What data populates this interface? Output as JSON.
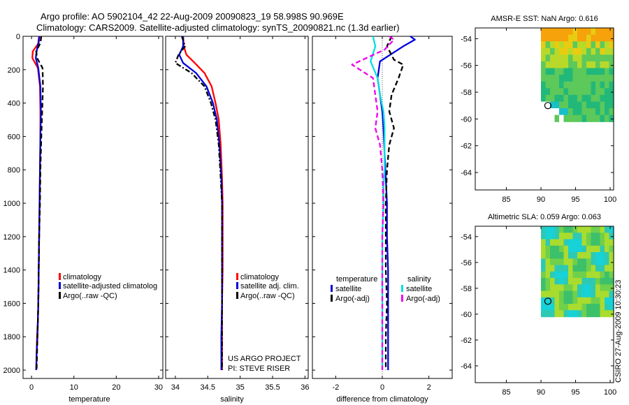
{
  "header": {
    "line1": "Argo profile: AO 5902104_42 22-Aug-2009 20090823_19 58.998S 90.969E",
    "line2": "Climatology: CARS2009. Satellite-adjusted climatology: synTS_20090821.nc (1.3d earlier)"
  },
  "footer_vertical": "CSIRO 27-Aug-2009 10:30:23",
  "project_note": {
    "line1": "US ARGO PROJECT",
    "line2": "PI: STEVE RISER"
  },
  "colors": {
    "climatology": "#ff0000",
    "satellite": "#0000dd",
    "argo": "#000000",
    "satellite_sal": "#00e0e0",
    "argo_sal": "#ee00ee"
  },
  "chart_data": [
    {
      "type": "line",
      "id": "temperature",
      "xlabel": "temperature",
      "xlim": [
        -2,
        31
      ],
      "xticks": [
        "0",
        "10",
        "20",
        "30"
      ],
      "ylim": [
        2050,
        0
      ],
      "yticks": [
        "0",
        "200",
        "400",
        "600",
        "800",
        "1000",
        "1200",
        "1400",
        "1600",
        "1800",
        "2000"
      ],
      "legend": [
        "climatology",
        "satellite-adjusted climatolog",
        "Argo(..raw -QC)"
      ],
      "series": [
        {
          "name": "climatology",
          "style": "solid",
          "color": "#ff0000",
          "x": [
            1.9,
            1.7,
            0.3,
            0.2,
            1.5,
            2.0,
            2.1,
            2.1,
            2.0,
            1.9,
            1.8,
            1.7,
            1.6,
            1.5,
            1.3,
            1.2,
            1.1
          ],
          "y": [
            0,
            40,
            90,
            130,
            190,
            300,
            450,
            600,
            800,
            1000,
            1200,
            1400,
            1600,
            1700,
            1800,
            1900,
            2000
          ]
        },
        {
          "name": "satellite-adjusted climatolog",
          "style": "solid",
          "color": "#0000dd",
          "x": [
            1.8,
            1.6,
            1.2,
            1.0,
            1.6,
            2.1,
            2.2,
            2.1,
            2.0,
            1.9,
            1.8,
            1.7,
            1.6,
            1.5,
            1.4,
            1.2,
            1.1
          ],
          "y": [
            0,
            40,
            90,
            130,
            190,
            300,
            450,
            600,
            800,
            1000,
            1200,
            1400,
            1600,
            1700,
            1800,
            1900,
            2000
          ]
        },
        {
          "name": "Argo(..raw -QC)",
          "style": "dash",
          "color": "#000000",
          "x": [
            2.3,
            2.1,
            1.1,
            1.3,
            2.6,
            2.7,
            2.5,
            2.3,
            2.1,
            2.0,
            1.8,
            1.7,
            1.6,
            1.5,
            1.4,
            1.3,
            1.2
          ],
          "y": [
            0,
            40,
            90,
            130,
            190,
            300,
            450,
            600,
            800,
            1000,
            1200,
            1400,
            1600,
            1700,
            1800,
            1900,
            2000
          ]
        }
      ]
    },
    {
      "type": "line",
      "id": "salinity",
      "xlabel": "salinity",
      "xlim": [
        33.85,
        36.05
      ],
      "xticks": [
        "34",
        "34.5",
        "35",
        "35.5",
        "36"
      ],
      "ylim": [
        2050,
        0
      ],
      "legend": [
        "climatology",
        "satellite adj. clim.",
        "Argo(..raw -QC)"
      ],
      "series": [
        {
          "name": "climatology",
          "style": "solid",
          "color": "#ff0000",
          "x": [
            34.12,
            34.13,
            34.17,
            34.3,
            34.45,
            34.56,
            34.62,
            34.67,
            34.7,
            34.72,
            34.73,
            34.73,
            34.73,
            34.72,
            34.72,
            34.72,
            34.72
          ],
          "y": [
            0,
            60,
            110,
            160,
            220,
            300,
            400,
            500,
            650,
            850,
            1000,
            1200,
            1400,
            1600,
            1800,
            1900,
            2000
          ]
        },
        {
          "name": "satellite adj. clim.",
          "style": "solid",
          "color": "#0000dd",
          "x": [
            34.12,
            34.12,
            34.06,
            34.12,
            34.32,
            34.48,
            34.58,
            34.64,
            34.68,
            34.71,
            34.72,
            34.72,
            34.72,
            34.72,
            34.71,
            34.71,
            34.71
          ],
          "y": [
            0,
            60,
            110,
            160,
            220,
            300,
            400,
            500,
            650,
            850,
            1000,
            1200,
            1400,
            1600,
            1800,
            1900,
            2000
          ]
        },
        {
          "name": "Argo(..raw -QC)",
          "style": "dashdot",
          "color": "#000000",
          "x": [
            34.1,
            34.15,
            34.05,
            34.0,
            34.25,
            34.45,
            34.55,
            34.62,
            34.67,
            34.7,
            34.72,
            34.72,
            34.72,
            34.72,
            34.72,
            34.72,
            34.72
          ],
          "y": [
            0,
            60,
            110,
            160,
            220,
            300,
            400,
            500,
            650,
            850,
            1000,
            1200,
            1400,
            1600,
            1800,
            1900,
            2000
          ]
        }
      ]
    },
    {
      "type": "line",
      "id": "difference",
      "xlabel": "difference from climatology",
      "xlim": [
        -3,
        3
      ],
      "xticks": [
        "-2",
        "0",
        "2"
      ],
      "ylim": [
        2050,
        0
      ],
      "legend_left_title": "temperature",
      "legend_right_title": "salinity",
      "legend": [
        "satellite",
        "Argo(-adj)",
        "satellite",
        "Argo(-adj)"
      ],
      "series": [
        {
          "name": "satellite",
          "group": "temperature",
          "style": "solid",
          "color": "#0000dd",
          "x": [
            1.2,
            1.4,
            0.9,
            -0.1,
            -0.2,
            -0.1,
            0.0,
            0.05,
            0.1,
            0.15,
            0.2,
            0.2,
            0.25,
            0.25,
            0.25,
            0.25,
            0.25
          ],
          "y": [
            0,
            20,
            60,
            150,
            250,
            350,
            450,
            550,
            700,
            850,
            1000,
            1200,
            1400,
            1600,
            1800,
            1900,
            2000
          ]
        },
        {
          "name": "Argo(-adj)",
          "group": "temperature",
          "style": "dash",
          "color": "#000000",
          "x": [
            0.4,
            0.2,
            0.5,
            0.9,
            0.7,
            0.4,
            0.3,
            0.5,
            0.3,
            0.2,
            0.15,
            0.15,
            0.15,
            0.2,
            0.15,
            0.15,
            0.15
          ],
          "y": [
            0,
            60,
            140,
            170,
            250,
            350,
            450,
            550,
            650,
            800,
            1000,
            1200,
            1400,
            1600,
            1800,
            1900,
            2000
          ]
        },
        {
          "name": "satellite",
          "group": "salinity",
          "style": "solid",
          "color": "#00e0e0",
          "x": [
            -0.4,
            -0.3,
            -0.5,
            -0.2,
            -0.1,
            0.05,
            0.1,
            0.1,
            0.1,
            0.05,
            0.05,
            0.0,
            0.0,
            0.0,
            0.0,
            0.0,
            0.0
          ],
          "y": [
            0,
            60,
            150,
            250,
            350,
            450,
            550,
            650,
            800,
            900,
            1000,
            1200,
            1400,
            1600,
            1800,
            1900,
            2000
          ]
        },
        {
          "name": "Argo(-adj)",
          "group": "salinity",
          "style": "dash",
          "color": "#ee00ee",
          "x": [
            0.3,
            0.5,
            0.1,
            -1.3,
            -0.4,
            -0.3,
            -0.2,
            -0.3,
            -0.1,
            0.0,
            0.05,
            0.0,
            0.0,
            0.0,
            0.0
          ],
          "y": [
            0,
            20,
            80,
            170,
            250,
            350,
            450,
            550,
            650,
            800,
            1000,
            1200,
            1400,
            1600,
            2000
          ]
        }
      ]
    },
    {
      "type": "heatmap",
      "id": "sst_map",
      "title": "AMSR-E SST: NaN Argo: 0.616",
      "xlim": [
        80.5,
        100.5
      ],
      "ylim": [
        -65.3,
        -53.2
      ],
      "xticks": [
        "85",
        "90",
        "95",
        "100"
      ],
      "yticks": [
        "-54",
        "-56",
        "-58",
        "-60",
        "-62",
        "-64"
      ],
      "data_extent": {
        "lon": [
          90,
          100.5
        ],
        "lat": [
          -60.2,
          -53.2
        ]
      },
      "argo_point": {
        "lon": 91.0,
        "lat": -59.0
      },
      "palette": [
        "#f6a20a",
        "#e8cc12",
        "#b8d92a",
        "#5cc95a",
        "#22b87a",
        "#18bfc6"
      ]
    },
    {
      "type": "heatmap",
      "id": "sla_map",
      "title": "Altimetric SLA: 0.059 Argo: 0.063",
      "xlim": [
        80.5,
        100.5
      ],
      "ylim": [
        -65.3,
        -53.2
      ],
      "xticks": [
        "85",
        "90",
        "95",
        "100"
      ],
      "yticks": [
        "-54",
        "-56",
        "-58",
        "-60",
        "-62",
        "-64"
      ],
      "data_extent": {
        "lon": [
          90,
          100.5
        ],
        "lat": [
          -60.2,
          -53.2
        ]
      },
      "argo_point": {
        "lon": 91.0,
        "lat": -59.0
      },
      "palette": [
        "#3dc06a",
        "#6fd04c",
        "#a9dc2e",
        "#2ec9b3",
        "#17d2d6"
      ]
    }
  ]
}
